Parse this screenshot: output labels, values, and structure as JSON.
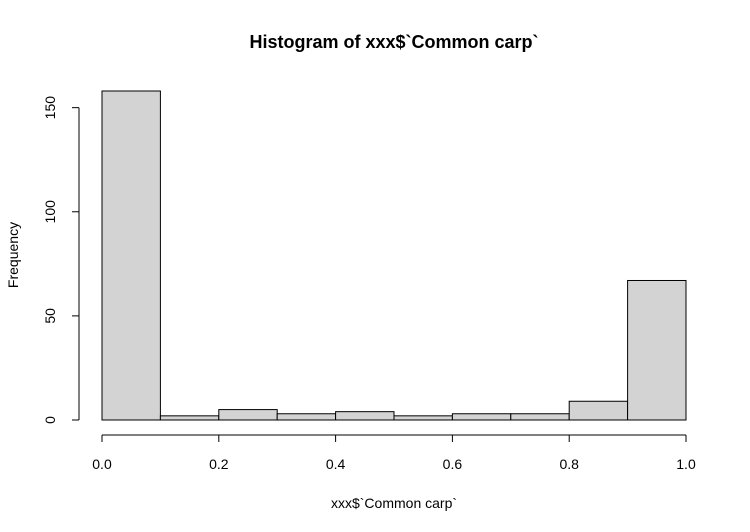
{
  "chart_data": {
    "type": "bar",
    "title": "Histogram of xxx$`Common carp`",
    "xlabel": "xxx$`Common carp`",
    "ylabel": "Frequency",
    "bins": [
      {
        "from": 0.0,
        "to": 0.1,
        "count": 158
      },
      {
        "from": 0.1,
        "to": 0.2,
        "count": 2
      },
      {
        "from": 0.2,
        "to": 0.3,
        "count": 5
      },
      {
        "from": 0.3,
        "to": 0.4,
        "count": 3
      },
      {
        "from": 0.4,
        "to": 0.5,
        "count": 4
      },
      {
        "from": 0.5,
        "to": 0.6,
        "count": 2
      },
      {
        "from": 0.6,
        "to": 0.7,
        "count": 3
      },
      {
        "from": 0.7,
        "to": 0.8,
        "count": 3
      },
      {
        "from": 0.8,
        "to": 0.9,
        "count": 9
      },
      {
        "from": 0.9,
        "to": 1.0,
        "count": 67
      }
    ],
    "x_ticks": [
      {
        "value": 0.0,
        "label": "0.0"
      },
      {
        "value": 0.2,
        "label": "0.2"
      },
      {
        "value": 0.4,
        "label": "0.4"
      },
      {
        "value": 0.6,
        "label": "0.6"
      },
      {
        "value": 0.8,
        "label": "0.8"
      },
      {
        "value": 1.0,
        "label": "1.0"
      }
    ],
    "y_ticks": [
      {
        "value": 0,
        "label": "0"
      },
      {
        "value": 50,
        "label": "50"
      },
      {
        "value": 100,
        "label": "100"
      },
      {
        "value": 150,
        "label": "150"
      }
    ],
    "xlim": [
      0,
      1
    ],
    "ylim": [
      0,
      158
    ],
    "grid": false,
    "colors": {
      "bar_fill": "#d3d3d3",
      "bar_stroke": "#000000"
    }
  }
}
